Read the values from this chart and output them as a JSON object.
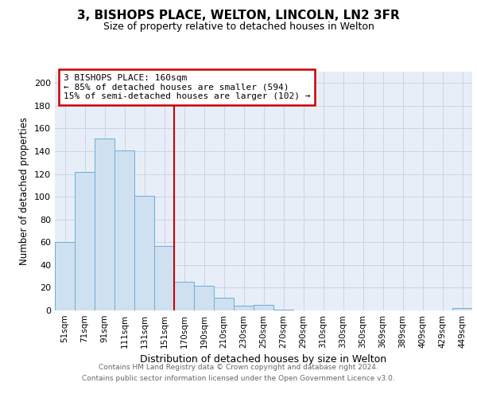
{
  "title": "3, BISHOPS PLACE, WELTON, LINCOLN, LN2 3FR",
  "subtitle": "Size of property relative to detached houses in Welton",
  "xlabel": "Distribution of detached houses by size in Welton",
  "ylabel": "Number of detached properties",
  "bar_labels": [
    "51sqm",
    "71sqm",
    "91sqm",
    "111sqm",
    "131sqm",
    "151sqm",
    "170sqm",
    "190sqm",
    "210sqm",
    "230sqm",
    "250sqm",
    "270sqm",
    "290sqm",
    "310sqm",
    "330sqm",
    "350sqm",
    "369sqm",
    "389sqm",
    "409sqm",
    "429sqm",
    "449sqm"
  ],
  "bar_heights": [
    60,
    122,
    151,
    141,
    101,
    57,
    25,
    22,
    11,
    4,
    5,
    1,
    0,
    0,
    0,
    0,
    0,
    0,
    0,
    0,
    2
  ],
  "bar_color": "#cfe0f0",
  "bar_edge_color": "#6aaed6",
  "vline_color": "#cc0000",
  "annotation_text": "3 BISHOPS PLACE: 160sqm\n← 85% of detached houses are smaller (594)\n15% of semi-detached houses are larger (102) →",
  "annotation_box_color": "#ffffff",
  "annotation_border_color": "#cc0000",
  "ylim": [
    0,
    210
  ],
  "yticks": [
    0,
    20,
    40,
    60,
    80,
    100,
    120,
    140,
    160,
    180,
    200
  ],
  "grid_color": "#c8d4e8",
  "background_color": "#e8eef8",
  "fig_background": "#ffffff",
  "footer_line1": "Contains HM Land Registry data © Crown copyright and database right 2024.",
  "footer_line2": "Contains public sector information licensed under the Open Government Licence v3.0."
}
